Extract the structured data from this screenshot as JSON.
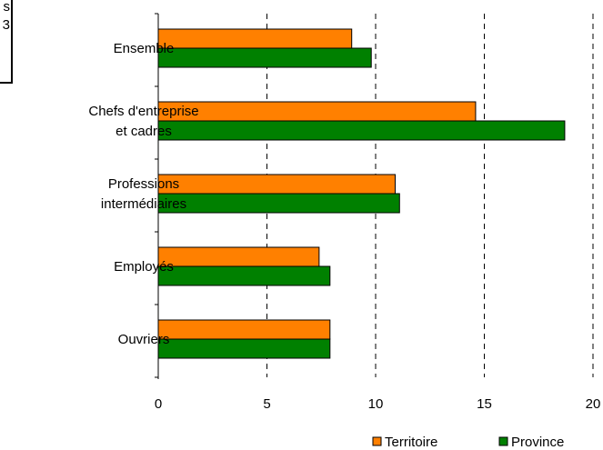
{
  "corner_fragment": {
    "line1": "s",
    "line2": "3"
  },
  "chart_data": {
    "type": "bar",
    "orientation": "horizontal",
    "categories": [
      [
        "Ensemble"
      ],
      [
        "Chefs d'entreprise",
        "et cadres"
      ],
      [
        "Professions",
        "intermédiaires"
      ],
      [
        "Employés"
      ],
      [
        "Ouvriers"
      ]
    ],
    "series": [
      {
        "name": "Territoire",
        "color": "#ff8000",
        "values": [
          8.9,
          14.6,
          10.9,
          7.4,
          7.9
        ]
      },
      {
        "name": "Province",
        "color": "#008000",
        "values": [
          9.8,
          18.7,
          11.1,
          7.9,
          7.9
        ]
      }
    ],
    "xlim": [
      0,
      20
    ],
    "xticks": [
      0,
      5,
      10,
      15,
      20
    ],
    "grid": "vertical dashed",
    "legend_position": "bottom-right",
    "title": "",
    "xlabel": "",
    "ylabel": ""
  }
}
